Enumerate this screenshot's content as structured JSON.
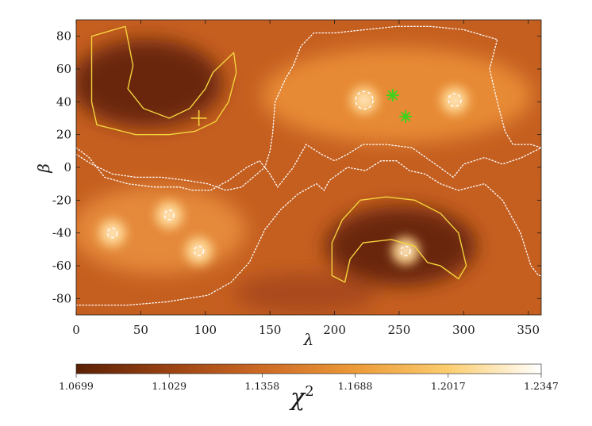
{
  "chart_data": {
    "type": "heatmap",
    "title": "",
    "xlabel": "λ",
    "ylabel": "β",
    "xlim": [
      0,
      360
    ],
    "ylim": [
      -90,
      90
    ],
    "x_ticks": [
      0,
      50,
      100,
      150,
      200,
      250,
      300,
      350
    ],
    "y_ticks": [
      -80,
      -60,
      -40,
      -20,
      0,
      20,
      40,
      60,
      80
    ],
    "colorbar": {
      "label": "χ",
      "label_superscript": "2",
      "range": [
        1.0699,
        1.2347
      ],
      "tick_labels": [
        "1.0699",
        "1.1029",
        "1.1358",
        "1.1688",
        "1.2017",
        "1.2347"
      ],
      "colors": [
        "#5a2106",
        "#9a4212",
        "#cd6a25",
        "#ec9a38",
        "#fbcd6e",
        "#ffffff"
      ]
    },
    "contours": {
      "low_level_color": "#f3d33d",
      "high_level_color": "#ffffff",
      "low_regions": [
        {
          "name": "north-low",
          "points": [
            [
              12,
              80
            ],
            [
              38,
              86
            ],
            [
              44,
              62
            ],
            [
              40,
              48
            ],
            [
              52,
              36
            ],
            [
              72,
              30
            ],
            [
              88,
              36
            ],
            [
              100,
              48
            ],
            [
              106,
              58
            ],
            [
              122,
              70
            ],
            [
              124,
              58
            ],
            [
              118,
              40
            ],
            [
              108,
              28
            ],
            [
              92,
              22
            ],
            [
              72,
              20
            ],
            [
              46,
              20
            ],
            [
              16,
              26
            ],
            [
              12,
              40
            ],
            [
              12,
              58
            ]
          ]
        },
        {
          "name": "south-low",
          "points": [
            [
              198,
              -66
            ],
            [
              208,
              -70
            ],
            [
              212,
              -56
            ],
            [
              222,
              -46
            ],
            [
              244,
              -44
            ],
            [
              262,
              -48
            ],
            [
              272,
              -58
            ],
            [
              282,
              -60
            ],
            [
              296,
              -68
            ],
            [
              302,
              -60
            ],
            [
              296,
              -40
            ],
            [
              282,
              -28
            ],
            [
              262,
              -20
            ],
            [
              240,
              -18
            ],
            [
              220,
              -20
            ],
            [
              206,
              -32
            ],
            [
              198,
              -46
            ]
          ]
        }
      ],
      "high_boundaries": [
        {
          "name": "north-high-boundary",
          "points": [
            [
              0,
              12
            ],
            [
              10,
              6
            ],
            [
              22,
              -6
            ],
            [
              40,
              -10
            ],
            [
              60,
              -12
            ],
            [
              80,
              -12
            ],
            [
              90,
              -14
            ],
            [
              104,
              -14
            ],
            [
              118,
              -8
            ],
            [
              132,
              0
            ],
            [
              142,
              4
            ],
            [
              150,
              -4
            ],
            [
              156,
              -12
            ],
            [
              168,
              0
            ],
            [
              178,
              14
            ],
            [
              190,
              8
            ],
            [
              200,
              4
            ],
            [
              210,
              8
            ],
            [
              222,
              14
            ],
            [
              240,
              14
            ],
            [
              260,
              12
            ],
            [
              278,
              2
            ],
            [
              292,
              -6
            ],
            [
              300,
              2
            ],
            [
              316,
              6
            ],
            [
              330,
              2
            ],
            [
              345,
              6
            ],
            [
              360,
              12
            ],
            [
              352,
              14
            ],
            [
              338,
              14
            ],
            [
              332,
              22
            ],
            [
              326,
              40
            ],
            [
              320,
              60
            ],
            [
              326,
              78
            ],
            [
              300,
              84
            ],
            [
              274,
              86
            ],
            [
              248,
              86
            ],
            [
              224,
              84
            ],
            [
              200,
              82
            ],
            [
              184,
              82
            ],
            [
              174,
              74
            ],
            [
              168,
              62
            ],
            [
              162,
              54
            ],
            [
              154,
              40
            ],
            [
              152,
              20
            ],
            [
              150,
              10
            ],
            [
              146,
              0
            ],
            [
              140,
              -4
            ],
            [
              128,
              -12
            ],
            [
              116,
              -14
            ],
            [
              102,
              -10
            ],
            [
              86,
              -8
            ],
            [
              66,
              -6
            ],
            [
              46,
              -6
            ],
            [
              28,
              -4
            ],
            [
              12,
              2
            ],
            [
              0,
              8
            ]
          ]
        },
        {
          "name": "south-high-boundary",
          "points": [
            [
              0,
              -84
            ],
            [
              20,
              -84
            ],
            [
              40,
              -84
            ],
            [
              70,
              -82
            ],
            [
              102,
              -78
            ],
            [
              120,
              -70
            ],
            [
              134,
              -58
            ],
            [
              146,
              -38
            ],
            [
              158,
              -26
            ],
            [
              172,
              -16
            ],
            [
              186,
              -10
            ],
            [
              192,
              -14
            ],
            [
              196,
              -8
            ],
            [
              210,
              0
            ],
            [
              224,
              -2
            ],
            [
              236,
              4
            ],
            [
              248,
              4
            ],
            [
              258,
              -2
            ],
            [
              270,
              -4
            ],
            [
              282,
              -10
            ],
            [
              296,
              -14
            ],
            [
              316,
              -10
            ],
            [
              330,
              -20
            ],
            [
              344,
              -40
            ],
            [
              352,
              -60
            ],
            [
              358,
              -66
            ],
            [
              360,
              -66
            ]
          ]
        }
      ]
    },
    "peaks": [
      {
        "lambda": 223,
        "beta": 41
      },
      {
        "lambda": 293,
        "beta": 41
      },
      {
        "lambda": 72,
        "beta": -29
      },
      {
        "lambda": 95,
        "beta": -51
      },
      {
        "lambda": 28,
        "beta": -40
      },
      {
        "lambda": 255,
        "beta": -51
      }
    ],
    "markers": [
      {
        "type": "plus",
        "lambda": 95,
        "beta": 30,
        "color": "#f3d33d"
      },
      {
        "type": "asterisk",
        "lambda": 245,
        "beta": 44,
        "color": "#3fd21b"
      },
      {
        "type": "asterisk",
        "lambda": 255,
        "beta": 31,
        "color": "#3fd21b"
      }
    ]
  }
}
